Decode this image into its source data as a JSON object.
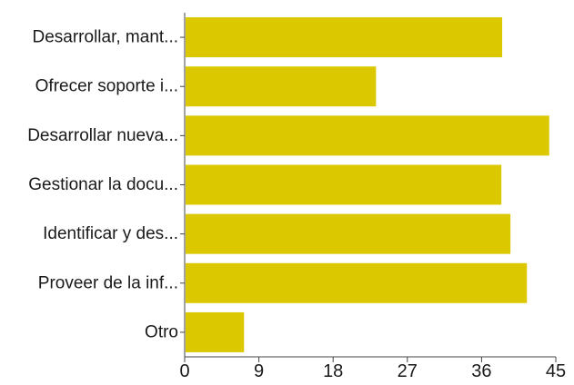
{
  "chart_data": {
    "type": "bar",
    "orientation": "horizontal",
    "categories": [
      "Desarrollar, mant...",
      "Ofrecer soporte i...",
      "Desarrollar nueva...",
      "Gestionar la docu...",
      "Identificar y des...",
      "Proveer de la inf...",
      "Otro"
    ],
    "values": [
      38.5,
      23.2,
      44.2,
      38.4,
      39.5,
      41.5,
      7.2
    ],
    "xlim": [
      0,
      45
    ],
    "xticks": [
      "0",
      "9",
      "18",
      "27",
      "36",
      "45"
    ],
    "xtick_values": [
      0,
      9,
      18,
      27,
      36,
      45
    ],
    "title": "",
    "xlabel": "",
    "ylabel": "",
    "grid": false,
    "bar_color": "#dcc800"
  }
}
